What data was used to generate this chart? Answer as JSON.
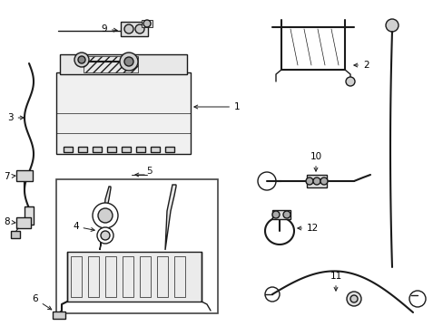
{
  "bg_color": "#ffffff",
  "line_color": "#1a1a1a",
  "label_color": "#000000",
  "figsize": [
    4.89,
    3.6
  ],
  "dpi": 100
}
